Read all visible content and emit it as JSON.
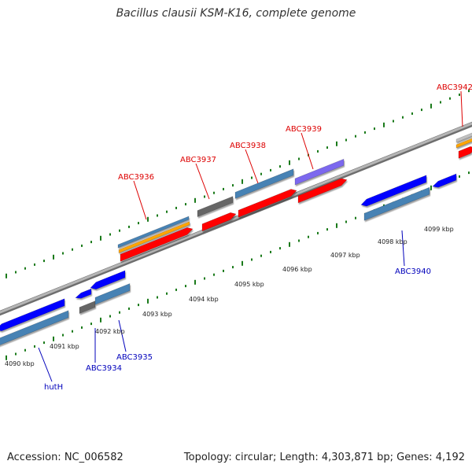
{
  "header": {
    "title": "Bacillus clausii KSM-K16, complete genome"
  },
  "footer": {
    "accession": "Accession: NC_006582",
    "stats": "Topology: circular; Length: 4,303,871 bp; Genes: 4,192"
  },
  "colors": {
    "backbone": "#999999",
    "tick": "#1a7a1a",
    "forward_label": "#dd0000",
    "reverse_label": "#0000bb",
    "red": "#ff0000",
    "blue": "#0000ff",
    "steel": "#4682b4",
    "orange": "#ffa500",
    "gray": "#666666",
    "purple": "#7b68ee",
    "silver": "#c0c0c0"
  },
  "axis": {
    "labels": [
      "4090 kbp",
      "4091 kbp",
      "4092 kbp",
      "4093 kbp",
      "4094 kbp",
      "4095 kbp",
      "4096 kbp",
      "4097 kbp",
      "4098 kbp",
      "4099 kbp"
    ]
  },
  "gene_labels": {
    "forward": [
      "ABC3936",
      "ABC3937",
      "ABC3938",
      "ABC3939",
      "ABC3942"
    ],
    "reverse": [
      "hutH",
      "ABC3934",
      "ABC3935",
      "ABC3940"
    ]
  }
}
